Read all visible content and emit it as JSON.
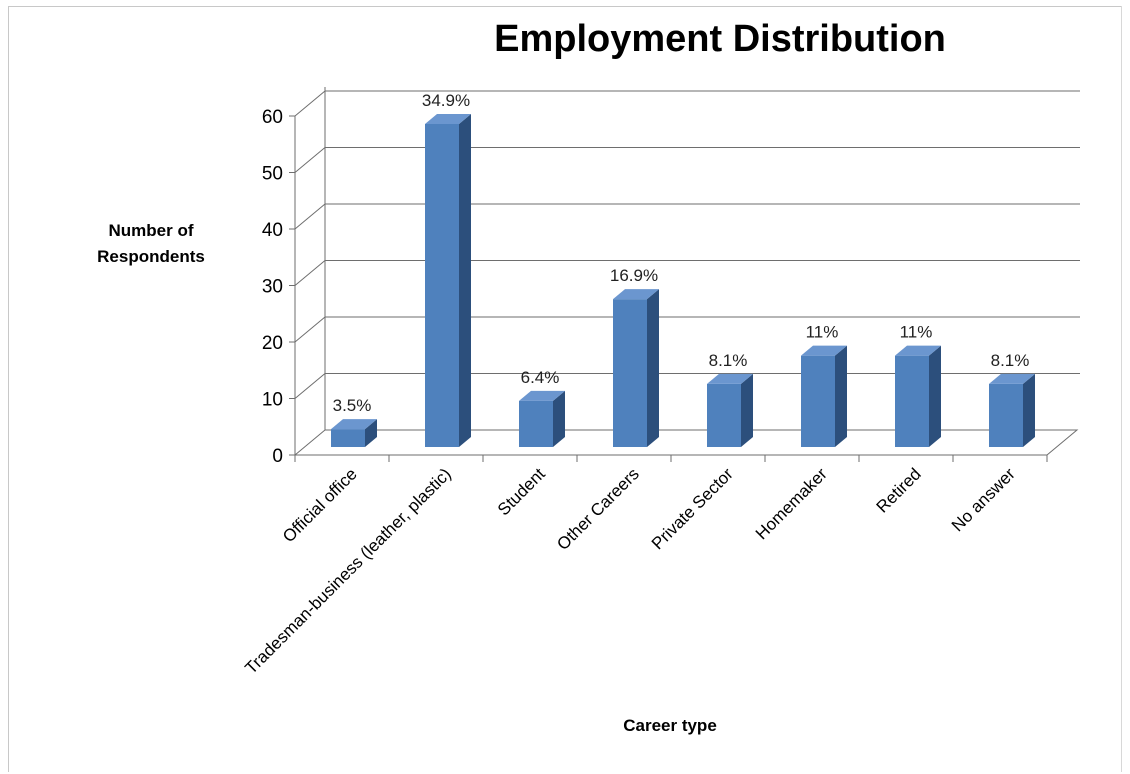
{
  "chart_data": {
    "type": "bar",
    "title": "Employment Distribution",
    "xlabel": "Career type",
    "ylabel": "Number of Respondents",
    "categories": [
      "Official office",
      "Tradesman-business (leather, plastic)",
      "Student",
      "Other Careers",
      "Private Sector",
      "Homemaker",
      "Retired",
      "No answer"
    ],
    "values": [
      6,
      60,
      11,
      29,
      14,
      19,
      19,
      14
    ],
    "data_labels": [
      "3.5%",
      "34.9%",
      "6.4%",
      "16.9%",
      "8.1%",
      "11%",
      "11%",
      "8.1%"
    ],
    "yticks": [
      0,
      10,
      20,
      30,
      40,
      50,
      60
    ],
    "ylim": [
      0,
      60
    ],
    "grid": true,
    "legend": "none",
    "colors": {
      "bar_front": "#4f81bd",
      "bar_side": "#2c4f7c",
      "bar_top": "#6b96cf",
      "grid": "#6e6e6e"
    }
  }
}
